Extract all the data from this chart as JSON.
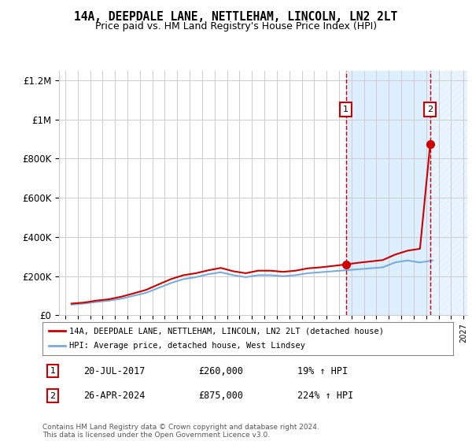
{
  "title": "14A, DEEPDALE LANE, NETTLEHAM, LINCOLN, LN2 2LT",
  "subtitle": "Price paid vs. HM Land Registry's House Price Index (HPI)",
  "ylim": [
    0,
    1250000
  ],
  "yticks": [
    0,
    200000,
    400000,
    600000,
    800000,
    1000000,
    1200000
  ],
  "ytick_labels": [
    "£0",
    "£200K",
    "£400K",
    "£600K",
    "£800K",
    "£1M",
    "£1.2M"
  ],
  "x_start_year": 1995,
  "x_end_year": 2027,
  "transaction1_date": 2017.55,
  "transaction1_price": 260000,
  "transaction2_date": 2024.32,
  "transaction2_price": 875000,
  "transaction1_info": "20-JUL-2017",
  "transaction1_amount": "£260,000",
  "transaction1_hpi": "19% ↑ HPI",
  "transaction2_info": "26-APR-2024",
  "transaction2_amount": "£875,000",
  "transaction2_hpi": "224% ↑ HPI",
  "legend_label1": "14A, DEEPDALE LANE, NETTLEHAM, LINCOLN, LN2 2LT (detached house)",
  "legend_label2": "HPI: Average price, detached house, West Lindsey",
  "footer": "Contains HM Land Registry data © Crown copyright and database right 2024.\nThis data is licensed under the Open Government Licence v3.0.",
  "line1_color": "#cc0000",
  "line2_color": "#7aabdb",
  "shaded_color": "#ddeeff",
  "hatch_color": "#ddeeff",
  "dot_color": "#cc0000",
  "box_color": "#cc0000",
  "bg_color": "#ffffff",
  "grid_color": "#cccccc",
  "hpi_years": [
    1995.5,
    1996.5,
    1997.5,
    1998.5,
    1999.5,
    2000.5,
    2001.5,
    2002.5,
    2003.5,
    2004.5,
    2005.5,
    2006.5,
    2007.5,
    2008.5,
    2009.5,
    2010.5,
    2011.5,
    2012.5,
    2013.5,
    2014.5,
    2015.5,
    2016.5,
    2017.5,
    2018.5,
    2019.5,
    2020.5,
    2021.5,
    2022.5,
    2023.5,
    2024.5
  ],
  "hpi_values": [
    55000,
    60000,
    68000,
    75000,
    85000,
    100000,
    115000,
    140000,
    165000,
    185000,
    195000,
    210000,
    220000,
    205000,
    195000,
    205000,
    205000,
    200000,
    205000,
    215000,
    220000,
    225000,
    230000,
    235000,
    240000,
    245000,
    270000,
    280000,
    270000,
    280000
  ],
  "price_years": [
    1995.5,
    1996.5,
    1997.5,
    1998.5,
    1999.5,
    2000.5,
    2001.5,
    2002.5,
    2003.5,
    2004.5,
    2005.5,
    2006.5,
    2007.5,
    2008.5,
    2009.5,
    2010.5,
    2011.5,
    2012.5,
    2013.5,
    2014.5,
    2015.5,
    2016.5,
    2017.55,
    2018.5,
    2019.5,
    2020.5,
    2021.5,
    2022.5,
    2023.5,
    2024.32
  ],
  "price_values": [
    60000,
    65000,
    75000,
    82000,
    95000,
    112000,
    130000,
    158000,
    185000,
    205000,
    215000,
    230000,
    242000,
    225000,
    215000,
    228000,
    228000,
    222000,
    228000,
    240000,
    245000,
    252000,
    260000,
    268000,
    275000,
    282000,
    310000,
    330000,
    340000,
    875000
  ]
}
